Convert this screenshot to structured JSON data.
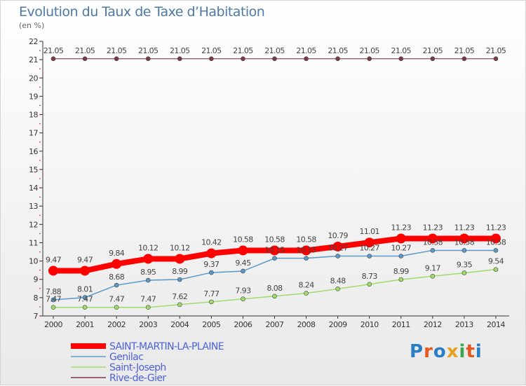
{
  "header": {
    "title": "Evolution du Taux de Taxe d’Habitation",
    "unit": "(en %)"
  },
  "logo": {
    "text": "Proxiti"
  },
  "colors": {
    "grid_dots": "#c8102e",
    "axis": "#333333"
  },
  "chart_data": {
    "type": "line",
    "title": "Evolution du Taux de Taxe d’Habitation",
    "ylabel": "(en %)",
    "xlabel": "",
    "ylim": [
      7,
      22
    ],
    "yticks": [
      "7",
      "8",
      "9",
      "10",
      "11",
      "12",
      "13",
      "14",
      "15",
      "16",
      "17",
      "18",
      "19",
      "20",
      "21",
      "22"
    ],
    "categories": [
      "2000",
      "2001",
      "2002",
      "2003",
      "2004",
      "2005",
      "2006",
      "2007",
      "2008",
      "2009",
      "2010",
      "2011",
      "2012",
      "2013",
      "2014"
    ],
    "grid": false,
    "legend_position": "bottom-left",
    "series": [
      {
        "name": "SAINT-MARTIN-LA-PLAINE",
        "color": "#ff0000",
        "labels": [
          "9.47",
          "9.47",
          "9.84",
          "10.12",
          "10.12",
          "10.42",
          "10.58",
          "10.58",
          "10.58",
          "10.79",
          "11.01",
          "11.23",
          "11.23",
          "11.23",
          "11.23"
        ],
        "values": [
          9.47,
          9.47,
          9.84,
          10.12,
          10.12,
          10.42,
          10.58,
          10.58,
          10.58,
          10.79,
          11.01,
          11.23,
          11.23,
          11.23,
          11.23
        ]
      },
      {
        "name": "Genilac",
        "color": "#5a9ac8",
        "labels": [
          "7.88",
          "8.01",
          "8.68",
          "8.95",
          "8.99",
          "9.37",
          "9.45",
          "10.15",
          "10.15",
          "10.27",
          "10.27",
          "10.27",
          "10.58",
          "10.58",
          "10.58"
        ],
        "values": [
          7.88,
          8.01,
          8.68,
          8.95,
          8.99,
          9.37,
          9.45,
          10.15,
          10.15,
          10.27,
          10.27,
          10.27,
          10.58,
          10.58,
          10.58
        ]
      },
      {
        "name": "Saint-Joseph",
        "color": "#9fdc6a",
        "labels": [
          "7.47",
          "7.47",
          "7.47",
          "7.47",
          "7.62",
          "7.77",
          "7.93",
          "8.08",
          "8.24",
          "8.48",
          "8.73",
          "8.99",
          "9.17",
          "9.35",
          "9.54"
        ],
        "values": [
          7.47,
          7.47,
          7.47,
          7.47,
          7.62,
          7.77,
          7.93,
          8.08,
          8.24,
          8.48,
          8.73,
          8.99,
          9.17,
          9.35,
          9.54
        ]
      },
      {
        "name": "Rive-de-Gier",
        "color": "#7a3b45",
        "labels": [
          "21.05",
          "21.05",
          "21.05",
          "21.05",
          "21.05",
          "21.05",
          "21.05",
          "21.05",
          "21.05",
          "21.05",
          "21.05",
          "21.05",
          "21.05",
          "21.05",
          "21.05"
        ],
        "values": [
          21.05,
          21.05,
          21.05,
          21.05,
          21.05,
          21.05,
          21.05,
          21.05,
          21.05,
          21.05,
          21.05,
          21.05,
          21.05,
          21.05,
          21.05
        ]
      }
    ]
  }
}
